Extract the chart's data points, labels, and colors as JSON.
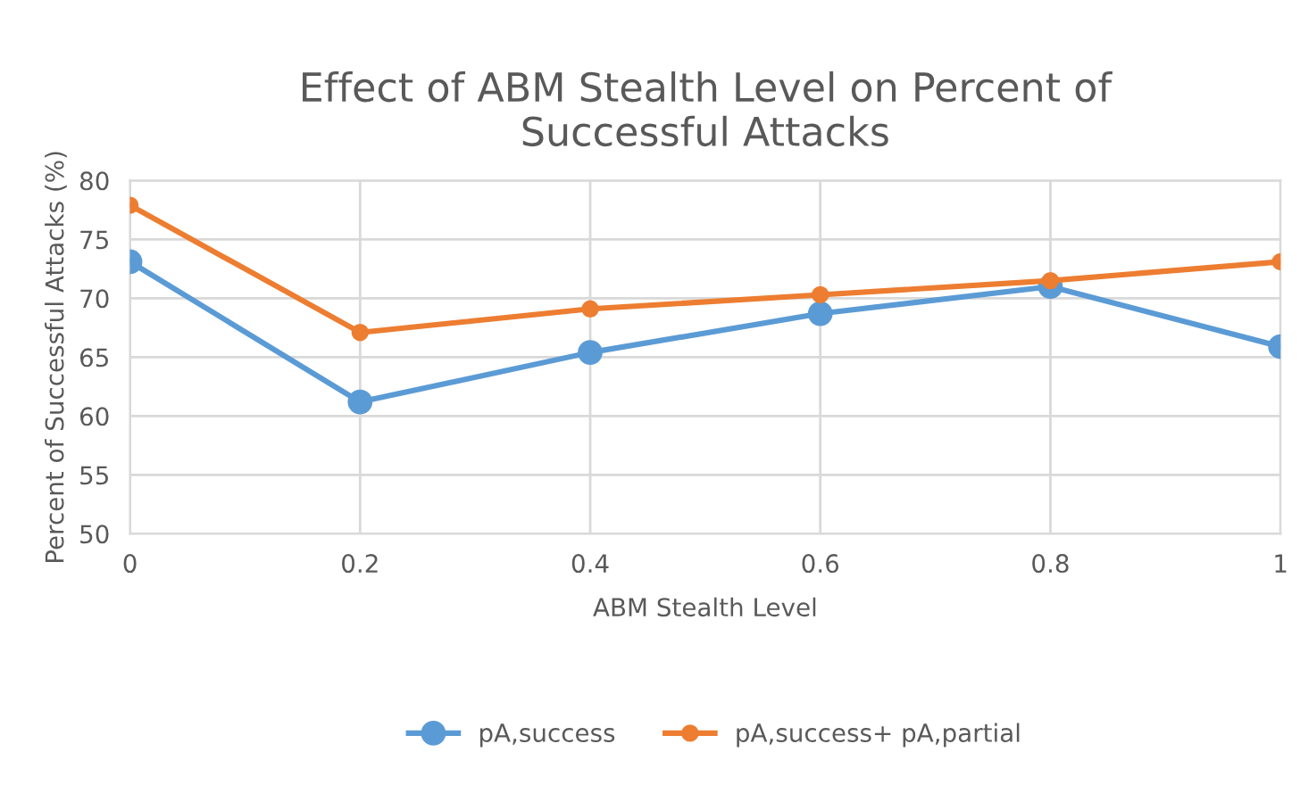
{
  "chart_data": {
    "type": "line",
    "title": "Effect of ABM Stealth Level on Percent of\nSuccessful Attacks",
    "xlabel": "ABM Stealth Level",
    "ylabel": "Percent of Successful Attacks (%)",
    "x": [
      0,
      0.2,
      0.4,
      0.6,
      0.8,
      1
    ],
    "series": [
      {
        "name": "pA,success",
        "color": "#5b9bd5",
        "values": [
          73.1,
          61.2,
          65.4,
          68.7,
          71.0,
          65.9
        ]
      },
      {
        "name": "pA,success+ pA,partial",
        "color": "#ed7d31",
        "values": [
          77.9,
          67.1,
          69.1,
          70.3,
          71.5,
          73.1
        ]
      }
    ],
    "xlim": [
      0,
      1
    ],
    "xticks": [
      0,
      0.2,
      0.4,
      0.6,
      0.8,
      1
    ],
    "ylim": [
      50,
      80
    ],
    "yticks": [
      50,
      55,
      60,
      65,
      70,
      75,
      80
    ],
    "grid": true,
    "legend": "bottom",
    "marker": "circle",
    "line_style": "solid"
  }
}
